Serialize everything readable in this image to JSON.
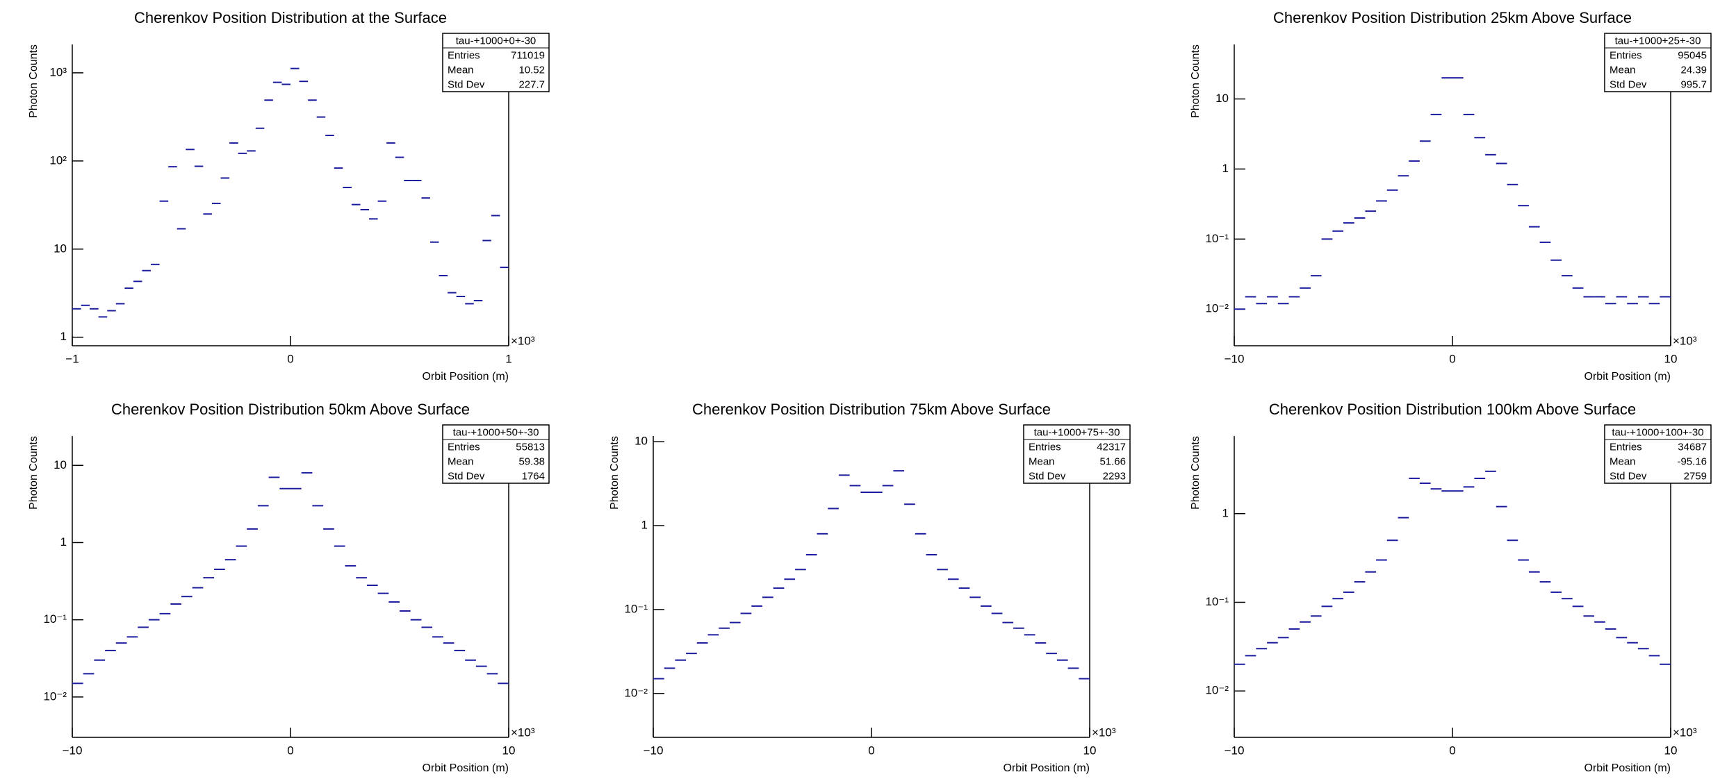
{
  "chart_data": [
    {
      "type": "histogram",
      "title": "Cherenkov Position Distribution at the Surface",
      "xlabel": "Orbit Position (m)",
      "ylabel": "Photon Counts",
      "log_y": true,
      "color": "#1c1c9e",
      "x_multiplier": "×10³",
      "stats": {
        "name": "tau-+1000+0+-30",
        "rows": [
          {
            "label": "Entries",
            "value": 711019
          },
          {
            "label": "Mean",
            "value": 10.52
          },
          {
            "label": "Std Dev",
            "value": 227.7
          }
        ]
      },
      "bins": [
        -1000,
        -960,
        -920,
        -880,
        -840,
        -800,
        -760,
        -720,
        -680,
        -640,
        -600,
        -560,
        -520,
        -480,
        -440,
        -400,
        -360,
        -320,
        -280,
        -240,
        -200,
        -160,
        -120,
        -80,
        -40,
        0,
        40,
        80,
        120,
        160,
        200,
        240,
        280,
        320,
        360,
        400,
        440,
        480,
        520,
        560,
        600,
        640,
        680,
        720,
        760,
        800,
        840,
        880,
        920,
        960,
        1000
      ],
      "values": [
        2.1,
        2.3,
        2.1,
        1.7,
        2.0,
        2.4,
        3.6,
        4.3,
        5.7,
        6.7,
        35,
        86,
        17,
        135,
        87,
        25,
        33,
        64,
        160,
        122,
        130,
        235,
        490,
        780,
        740,
        1120,
        800,
        490,
        315,
        195,
        83,
        50,
        32,
        28,
        22,
        35,
        160,
        110,
        60,
        60,
        38,
        12,
        5,
        3.2,
        2.9,
        2.4,
        2.6,
        12.5,
        24,
        6.2
      ],
      "xlim": [
        -1000,
        1000
      ],
      "xticks": [
        {
          "value": -1000,
          "label": "−1"
        },
        0,
        {
          "value": 1000,
          "label": "1"
        }
      ],
      "ylim": [
        0.8,
        2100
      ],
      "yticks": [
        1,
        10,
        {
          "value": 100,
          "label": "10²"
        },
        {
          "value": 1000,
          "label": "10³"
        }
      ]
    },
    {
      "type": "histogram",
      "title": "Cherenkov Position Distribution 25km Above Surface",
      "xlabel": "Orbit Position (m)",
      "ylabel": "Photon Counts",
      "log_y": true,
      "color": "#1c1c9e",
      "x_multiplier": "×10³",
      "stats": {
        "name": "tau-+1000+25+-30",
        "rows": [
          {
            "label": "Entries",
            "value": 95045
          },
          {
            "label": "Mean",
            "value": 24.39
          },
          {
            "label": "Std Dev",
            "value": 995.7
          }
        ]
      },
      "bins": [
        -10000,
        -9500,
        -9000,
        -8500,
        -8000,
        -7500,
        -7000,
        -6500,
        -6000,
        -5500,
        -5000,
        -4500,
        -4000,
        -3500,
        -3000,
        -2500,
        -2000,
        -1500,
        -1000,
        -500,
        0,
        500,
        1000,
        1500,
        2000,
        2500,
        3000,
        3500,
        4000,
        4500,
        5000,
        5500,
        6000,
        6500,
        7000,
        7500,
        8000,
        8500,
        9000,
        9500,
        10000
      ],
      "values": [
        0.01,
        0.015,
        0.012,
        0.015,
        0.012,
        0.015,
        0.02,
        0.03,
        0.1,
        0.13,
        0.17,
        0.2,
        0.25,
        0.35,
        0.5,
        0.8,
        1.3,
        2.5,
        6,
        20,
        20,
        6,
        2.8,
        1.6,
        1.2,
        0.6,
        0.3,
        0.15,
        0.09,
        0.05,
        0.03,
        0.02,
        0.015,
        0.015,
        0.012,
        0.015,
        0.012,
        0.015,
        0.012,
        0.015
      ],
      "xlim": [
        -10000,
        10000
      ],
      "xticks": [
        {
          "value": -10000,
          "label": "−10"
        },
        0,
        {
          "value": 10000,
          "label": "10"
        }
      ],
      "ylim": [
        0.003,
        60
      ],
      "yticks": [
        {
          "value": 0.01,
          "label": "10⁻²"
        },
        {
          "value": 0.1,
          "label": "10⁻¹"
        },
        1,
        10
      ]
    },
    {
      "type": "histogram",
      "title": "Cherenkov Position Distribution 50km Above Surface",
      "xlabel": "Orbit Position (m)",
      "ylabel": "Photon Counts",
      "log_y": true,
      "color": "#1c1c9e",
      "x_multiplier": "×10³",
      "stats": {
        "name": "tau-+1000+50+-30",
        "rows": [
          {
            "label": "Entries",
            "value": 55813
          },
          {
            "label": "Mean",
            "value": 59.38
          },
          {
            "label": "Std Dev",
            "value": 1764
          }
        ]
      },
      "bins": [
        -10000,
        -9500,
        -9000,
        -8500,
        -8000,
        -7500,
        -7000,
        -6500,
        -6000,
        -5500,
        -5000,
        -4500,
        -4000,
        -3500,
        -3000,
        -2500,
        -2000,
        -1500,
        -1000,
        -500,
        0,
        500,
        1000,
        1500,
        2000,
        2500,
        3000,
        3500,
        4000,
        4500,
        5000,
        5500,
        6000,
        6500,
        7000,
        7500,
        8000,
        8500,
        9000,
        9500,
        10000
      ],
      "values": [
        0.015,
        0.02,
        0.03,
        0.04,
        0.05,
        0.06,
        0.08,
        0.1,
        0.12,
        0.16,
        0.2,
        0.26,
        0.35,
        0.45,
        0.6,
        0.9,
        1.5,
        3,
        7,
        5,
        5,
        8,
        3,
        1.5,
        0.9,
        0.5,
        0.35,
        0.28,
        0.22,
        0.17,
        0.13,
        0.1,
        0.08,
        0.06,
        0.05,
        0.04,
        0.03,
        0.025,
        0.02,
        0.015
      ],
      "xlim": [
        -10000,
        10000
      ],
      "xticks": [
        {
          "value": -10000,
          "label": "−10"
        },
        0,
        {
          "value": 10000,
          "label": "10"
        }
      ],
      "ylim": [
        0.003,
        24
      ],
      "yticks": [
        {
          "value": 0.01,
          "label": "10⁻²"
        },
        {
          "value": 0.1,
          "label": "10⁻¹"
        },
        1,
        10
      ]
    },
    {
      "type": "histogram",
      "title": "Cherenkov Position Distribution 75km Above Surface",
      "xlabel": "Orbit Position (m)",
      "ylabel": "Photon Counts",
      "log_y": true,
      "color": "#1c1c9e",
      "x_multiplier": "×10³",
      "stats": {
        "name": "tau-+1000+75+-30",
        "rows": [
          {
            "label": "Entries",
            "value": 42317
          },
          {
            "label": "Mean",
            "value": 51.66
          },
          {
            "label": "Std Dev",
            "value": 2293
          }
        ]
      },
      "bins": [
        -10000,
        -9500,
        -9000,
        -8500,
        -8000,
        -7500,
        -7000,
        -6500,
        -6000,
        -5500,
        -5000,
        -4500,
        -4000,
        -3500,
        -3000,
        -2500,
        -2000,
        -1500,
        -1000,
        -500,
        0,
        500,
        1000,
        1500,
        2000,
        2500,
        3000,
        3500,
        4000,
        4500,
        5000,
        5500,
        6000,
        6500,
        7000,
        7500,
        8000,
        8500,
        9000,
        9500,
        10000
      ],
      "values": [
        0.015,
        0.02,
        0.025,
        0.03,
        0.04,
        0.05,
        0.06,
        0.07,
        0.09,
        0.11,
        0.14,
        0.18,
        0.23,
        0.3,
        0.45,
        0.8,
        1.6,
        4,
        3,
        2.5,
        2.5,
        3,
        4.5,
        1.8,
        0.8,
        0.45,
        0.3,
        0.23,
        0.18,
        0.14,
        0.11,
        0.09,
        0.07,
        0.06,
        0.05,
        0.04,
        0.03,
        0.025,
        0.02,
        0.015
      ],
      "xlim": [
        -10000,
        10000
      ],
      "xticks": [
        {
          "value": -10000,
          "label": "−10"
        },
        0,
        {
          "value": 10000,
          "label": "10"
        }
      ],
      "ylim": [
        0.003,
        11.7
      ],
      "yticks": [
        {
          "value": 0.01,
          "label": "10⁻²"
        },
        {
          "value": 0.1,
          "label": "10⁻¹"
        },
        1,
        10
      ]
    },
    {
      "type": "histogram",
      "title": "Cherenkov Position Distribution 100km Above Surface",
      "xlabel": "Orbit Position (m)",
      "ylabel": "Photon Counts",
      "log_y": true,
      "color": "#1c1c9e",
      "x_multiplier": "×10³",
      "stats": {
        "name": "tau-+1000+100+-30",
        "rows": [
          {
            "label": "Entries",
            "value": 34687
          },
          {
            "label": "Mean",
            "value": -95.16
          },
          {
            "label": "Std Dev",
            "value": 2759
          }
        ]
      },
      "bins": [
        -10000,
        -9500,
        -9000,
        -8500,
        -8000,
        -7500,
        -7000,
        -6500,
        -6000,
        -5500,
        -5000,
        -4500,
        -4000,
        -3500,
        -3000,
        -2500,
        -2000,
        -1500,
        -1000,
        -500,
        0,
        500,
        1000,
        1500,
        2000,
        2500,
        3000,
        3500,
        4000,
        4500,
        5000,
        5500,
        6000,
        6500,
        7000,
        7500,
        8000,
        8500,
        9000,
        9500,
        10000
      ],
      "values": [
        0.02,
        0.025,
        0.03,
        0.035,
        0.04,
        0.05,
        0.06,
        0.07,
        0.09,
        0.11,
        0.13,
        0.17,
        0.22,
        0.3,
        0.5,
        0.9,
        2.5,
        2.2,
        1.9,
        1.8,
        1.8,
        2,
        2.5,
        3,
        1.2,
        0.5,
        0.3,
        0.22,
        0.17,
        0.13,
        0.11,
        0.09,
        0.07,
        0.06,
        0.05,
        0.04,
        0.035,
        0.03,
        0.025,
        0.02
      ],
      "xlim": [
        -10000,
        10000
      ],
      "xticks": [
        {
          "value": -10000,
          "label": "−10"
        },
        0,
        {
          "value": 10000,
          "label": "10"
        }
      ],
      "ylim": [
        0.003,
        7.5
      ],
      "yticks": [
        {
          "value": 0.01,
          "label": "10⁻²"
        },
        {
          "value": 0.1,
          "label": "10⁻¹"
        },
        1
      ]
    }
  ]
}
